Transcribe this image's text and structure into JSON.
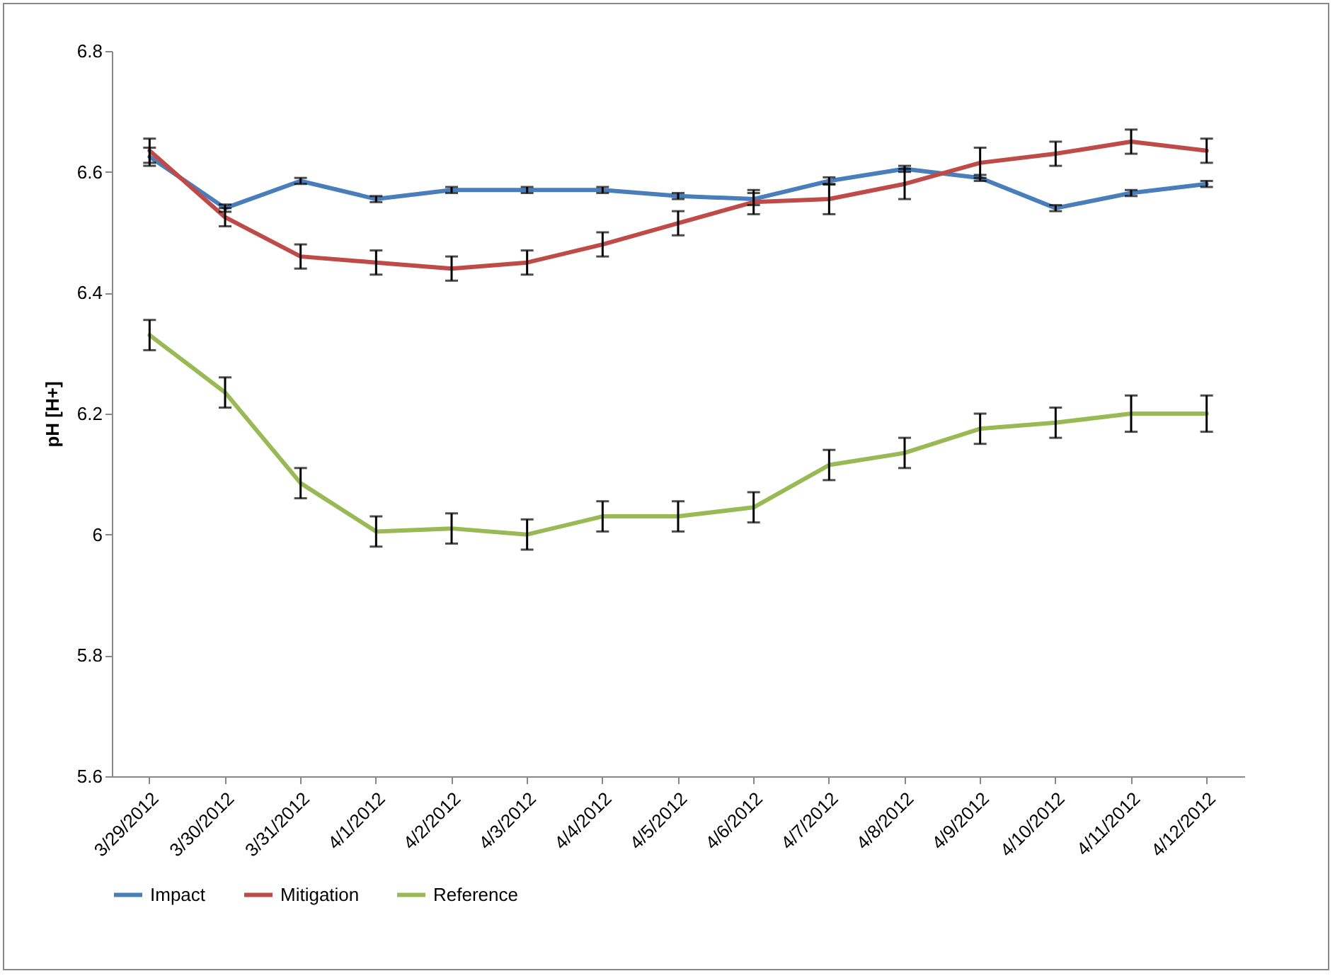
{
  "chart_data": {
    "type": "line",
    "ylabel": "pH [H+]",
    "categories": [
      "3/29/2012",
      "3/30/2012",
      "3/31/2012",
      "4/1/2012",
      "4/2/2012",
      "4/3/2012",
      "4/4/2012",
      "4/5/2012",
      "4/6/2012",
      "4/7/2012",
      "4/8/2012",
      "4/9/2012",
      "4/10/2012",
      "4/11/2012",
      "4/12/2012"
    ],
    "series": [
      {
        "name": "Impact",
        "color": "#4a7ebb",
        "values": [
          6.625,
          6.54,
          6.585,
          6.555,
          6.57,
          6.57,
          6.57,
          6.56,
          6.555,
          6.585,
          6.605,
          6.59,
          6.54,
          6.565,
          6.58
        ],
        "errors": [
          0.015,
          0.006,
          0.005,
          0.005,
          0.005,
          0.005,
          0.005,
          0.005,
          0.01,
          0.006,
          0.005,
          0.005,
          0.005,
          0.005,
          0.005
        ]
      },
      {
        "name": "Mitigation",
        "color": "#be4b48",
        "values": [
          6.635,
          6.525,
          6.46,
          6.45,
          6.44,
          6.45,
          6.48,
          6.515,
          6.55,
          6.555,
          6.58,
          6.615,
          6.63,
          6.65,
          6.635
        ],
        "errors": [
          0.02,
          0.015,
          0.02,
          0.02,
          0.02,
          0.02,
          0.02,
          0.02,
          0.02,
          0.025,
          0.025,
          0.025,
          0.02,
          0.02,
          0.02
        ]
      },
      {
        "name": "Reference",
        "color": "#98b954",
        "values": [
          6.33,
          6.235,
          6.085,
          6.005,
          6.01,
          6.0,
          6.03,
          6.03,
          6.045,
          6.115,
          6.135,
          6.175,
          6.185,
          6.2,
          6.2
        ],
        "errors": [
          0.025,
          0.025,
          0.025,
          0.025,
          0.025,
          0.025,
          0.025,
          0.025,
          0.025,
          0.025,
          0.025,
          0.025,
          0.025,
          0.03,
          0.03
        ]
      }
    ],
    "ylim": [
      5.6,
      6.8
    ],
    "yticks": [
      5.6,
      5.8,
      6,
      6.2,
      6.4,
      6.6,
      6.8
    ],
    "grid": false,
    "legend": "bottom",
    "marker": "none",
    "line_style": "solid"
  }
}
